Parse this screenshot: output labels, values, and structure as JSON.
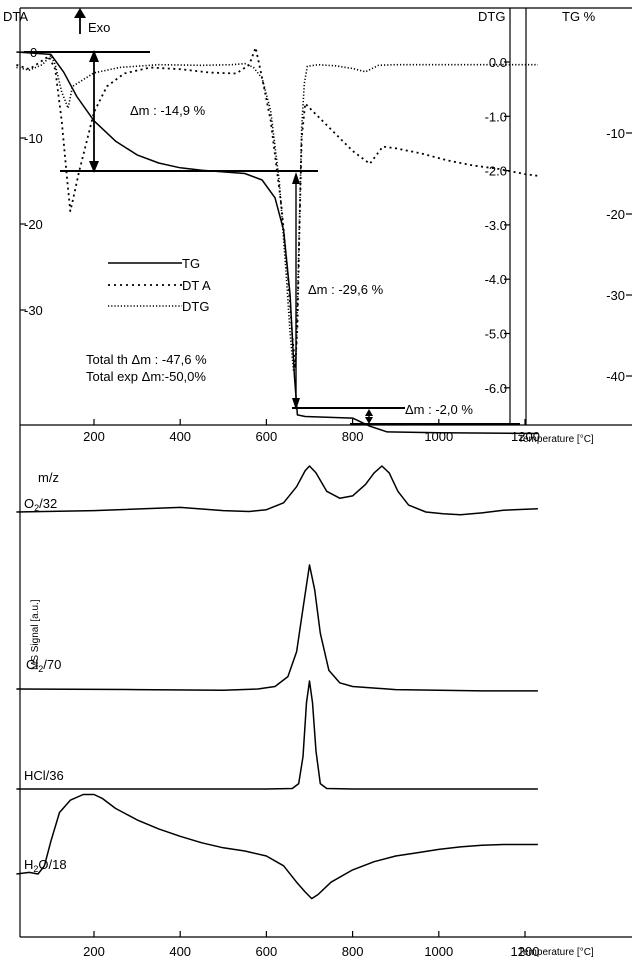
{
  "chart_data": [
    {
      "type": "line",
      "x": {
        "label": "Temperature [°C]",
        "range": [
          20,
          1230
        ],
        "ticks": [
          200,
          400,
          600,
          800,
          1000,
          1200
        ]
      },
      "axes": {
        "dta": {
          "label": "DTA",
          "exo_label": "Exo",
          "ticks": [
            0,
            -10,
            -20,
            -30
          ]
        },
        "dtg": {
          "label": "DTG",
          "ticks": [
            "0.0",
            "-1.0",
            "-2.0",
            "-3.0",
            "-4.0",
            "-5.0",
            "-6.0"
          ]
        },
        "tg": {
          "label": "TG %",
          "ticks": [
            -10,
            -20,
            -30,
            -40
          ]
        }
      },
      "legend": {
        "placement": "center-left",
        "entries": [
          "TG",
          "DT A",
          "DTG"
        ]
      },
      "annotations": [
        "Δm : -14,9 %",
        "Δm : -29,6 %",
        "Δm : -2,0 %",
        "Total th Δm : -47,6 %",
        "Total exp Δm:-50,0%"
      ],
      "series": [
        {
          "name": "TG",
          "style": "solid",
          "points": [
            [
              20,
              0
            ],
            [
              100,
              -0.3
            ],
            [
              130,
              -2.5
            ],
            [
              160,
              -5.5
            ],
            [
              200,
              -8.5
            ],
            [
              250,
              -11
            ],
            [
              300,
              -12.7
            ],
            [
              350,
              -13.7
            ],
            [
              400,
              -14.3
            ],
            [
              450,
              -14.6
            ],
            [
              500,
              -14.8
            ],
            [
              550,
              -15
            ],
            [
              590,
              -15.8
            ],
            [
              620,
              -18
            ],
            [
              640,
              -22
            ],
            [
              655,
              -30
            ],
            [
              665,
              -40
            ],
            [
              672,
              -44.8
            ],
            [
              690,
              -45
            ],
            [
              800,
              -45.2
            ],
            [
              840,
              -46.2
            ],
            [
              880,
              -46.9
            ],
            [
              1000,
              -47
            ],
            [
              1230,
              -47.1
            ]
          ]
        },
        {
          "name": "DT A",
          "style": "dotted",
          "points": [
            [
              20,
              -1.5
            ],
            [
              50,
              -2
            ],
            [
              80,
              -1
            ],
            [
              95,
              -0.5
            ],
            [
              110,
              -2
            ],
            [
              125,
              -8
            ],
            [
              138,
              -15
            ],
            [
              145,
              -18.5
            ],
            [
              152,
              -17
            ],
            [
              165,
              -14
            ],
            [
              180,
              -11
            ],
            [
              200,
              -7
            ],
            [
              230,
              -4
            ],
            [
              270,
              -2.5
            ],
            [
              330,
              -1.8
            ],
            [
              400,
              -2
            ],
            [
              470,
              -2.4
            ],
            [
              530,
              -2.5
            ],
            [
              560,
              -1.5
            ],
            [
              575,
              0.5
            ],
            [
              590,
              -3
            ],
            [
              610,
              -8
            ],
            [
              635,
              -18
            ],
            [
              650,
              -26
            ],
            [
              660,
              -33
            ],
            [
              667,
              -36.5
            ],
            [
              672,
              -32
            ],
            [
              677,
              -20
            ],
            [
              682,
              -10
            ],
            [
              690,
              -6
            ],
            [
              720,
              -7.5
            ],
            [
              760,
              -9.5
            ],
            [
              800,
              -11.5
            ],
            [
              840,
              -13
            ],
            [
              870,
              -11
            ],
            [
              900,
              -11.2
            ],
            [
              960,
              -11.8
            ],
            [
              1020,
              -12.6
            ],
            [
              1080,
              -13.2
            ],
            [
              1140,
              -13.6
            ],
            [
              1200,
              -14.2
            ],
            [
              1230,
              -14.4
            ]
          ]
        },
        {
          "name": "DTG",
          "style": "dotted",
          "points": [
            [
              20,
              -0.1
            ],
            [
              50,
              -0.15
            ],
            [
              80,
              -0.05
            ],
            [
              100,
              0.12
            ],
            [
              110,
              -0.05
            ],
            [
              125,
              -0.55
            ],
            [
              140,
              -0.85
            ],
            [
              150,
              -0.45
            ],
            [
              170,
              -0.35
            ],
            [
              200,
              -0.2
            ],
            [
              260,
              -0.1
            ],
            [
              350,
              -0.05
            ],
            [
              450,
              -0.06
            ],
            [
              520,
              -0.05
            ],
            [
              550,
              -0.03
            ],
            [
              570,
              -0.1
            ],
            [
              590,
              -0.3
            ],
            [
              610,
              -0.9
            ],
            [
              630,
              -2.2
            ],
            [
              645,
              -3.8
            ],
            [
              655,
              -5
            ],
            [
              663,
              -5.7
            ],
            [
              668,
              -5.6
            ],
            [
              672,
              -4.5
            ],
            [
              677,
              -2.8
            ],
            [
              682,
              -1.2
            ],
            [
              688,
              -0.4
            ],
            [
              695,
              -0.08
            ],
            [
              720,
              -0.05
            ],
            [
              760,
              -0.07
            ],
            [
              800,
              -0.12
            ],
            [
              830,
              -0.18
            ],
            [
              860,
              -0.06
            ],
            [
              900,
              -0.05
            ],
            [
              1000,
              -0.05
            ],
            [
              1100,
              -0.05
            ],
            [
              1230,
              -0.05
            ]
          ]
        }
      ]
    },
    {
      "type": "line",
      "x": {
        "label": "Temperature [°C]",
        "range": [
          20,
          1230
        ],
        "ticks": [
          200,
          400,
          600,
          800,
          1000,
          1200
        ]
      },
      "y": {
        "label": "MS Signal [a.u.]",
        "header": "m/z"
      },
      "series": [
        {
          "name": "O",
          "sub": "2",
          "suffix": "/32",
          "points": [
            [
              20,
              0
            ],
            [
              200,
              0.03
            ],
            [
              400,
              0.1
            ],
            [
              500,
              0.03
            ],
            [
              560,
              0.01
            ],
            [
              600,
              0.05
            ],
            [
              640,
              0.2
            ],
            [
              670,
              0.55
            ],
            [
              690,
              0.9
            ],
            [
              700,
              1.0
            ],
            [
              715,
              0.85
            ],
            [
              740,
              0.45
            ],
            [
              770,
              0.3
            ],
            [
              800,
              0.35
            ],
            [
              830,
              0.6
            ],
            [
              850,
              0.85
            ],
            [
              868,
              1.0
            ],
            [
              885,
              0.85
            ],
            [
              905,
              0.45
            ],
            [
              930,
              0.15
            ],
            [
              970,
              0.0
            ],
            [
              1010,
              -0.04
            ],
            [
              1050,
              -0.06
            ],
            [
              1100,
              -0.02
            ],
            [
              1150,
              0.04
            ],
            [
              1230,
              0.07
            ]
          ]
        },
        {
          "name": "Cl",
          "sub": "2",
          "suffix": "/70",
          "points": [
            [
              20,
              0
            ],
            [
              300,
              -0.005
            ],
            [
              500,
              -0.01
            ],
            [
              580,
              0.0
            ],
            [
              620,
              0.02
            ],
            [
              650,
              0.1
            ],
            [
              670,
              0.3
            ],
            [
              685,
              0.65
            ],
            [
              700,
              1.0
            ],
            [
              712,
              0.8
            ],
            [
              725,
              0.45
            ],
            [
              745,
              0.15
            ],
            [
              770,
              0.05
            ],
            [
              800,
              0.02
            ],
            [
              900,
              -0.005
            ],
            [
              1000,
              -0.01
            ],
            [
              1100,
              -0.015
            ],
            [
              1230,
              -0.015
            ]
          ]
        },
        {
          "name": "HCl/36",
          "points": [
            [
              20,
              0
            ],
            [
              600,
              0
            ],
            [
              660,
              0.005
            ],
            [
              675,
              0.05
            ],
            [
              685,
              0.3
            ],
            [
              693,
              0.8
            ],
            [
              700,
              1.0
            ],
            [
              707,
              0.8
            ],
            [
              715,
              0.35
            ],
            [
              725,
              0.05
            ],
            [
              740,
              0.005
            ],
            [
              800,
              0
            ],
            [
              1230,
              0
            ]
          ]
        },
        {
          "name": "H",
          "sub": "2",
          "suffix": "O/18",
          "points": [
            [
              20,
              0
            ],
            [
              50,
              0.02
            ],
            [
              70,
              0.0
            ],
            [
              85,
              0.1
            ],
            [
              100,
              0.4
            ],
            [
              120,
              0.75
            ],
            [
              145,
              0.9
            ],
            [
              175,
              0.97
            ],
            [
              200,
              0.97
            ],
            [
              220,
              0.92
            ],
            [
              250,
              0.8
            ],
            [
              300,
              0.66
            ],
            [
              350,
              0.55
            ],
            [
              400,
              0.46
            ],
            [
              450,
              0.38
            ],
            [
              500,
              0.32
            ],
            [
              550,
              0.28
            ],
            [
              600,
              0.22
            ],
            [
              640,
              0.1
            ],
            [
              670,
              -0.1
            ],
            [
              690,
              -0.22
            ],
            [
              705,
              -0.3
            ],
            [
              720,
              -0.25
            ],
            [
              750,
              -0.1
            ],
            [
              800,
              0.05
            ],
            [
              850,
              0.15
            ],
            [
              900,
              0.22
            ],
            [
              950,
              0.26
            ],
            [
              1000,
              0.3
            ],
            [
              1050,
              0.33
            ],
            [
              1100,
              0.35
            ],
            [
              1150,
              0.36
            ],
            [
              1230,
              0.36
            ]
          ]
        }
      ]
    }
  ]
}
